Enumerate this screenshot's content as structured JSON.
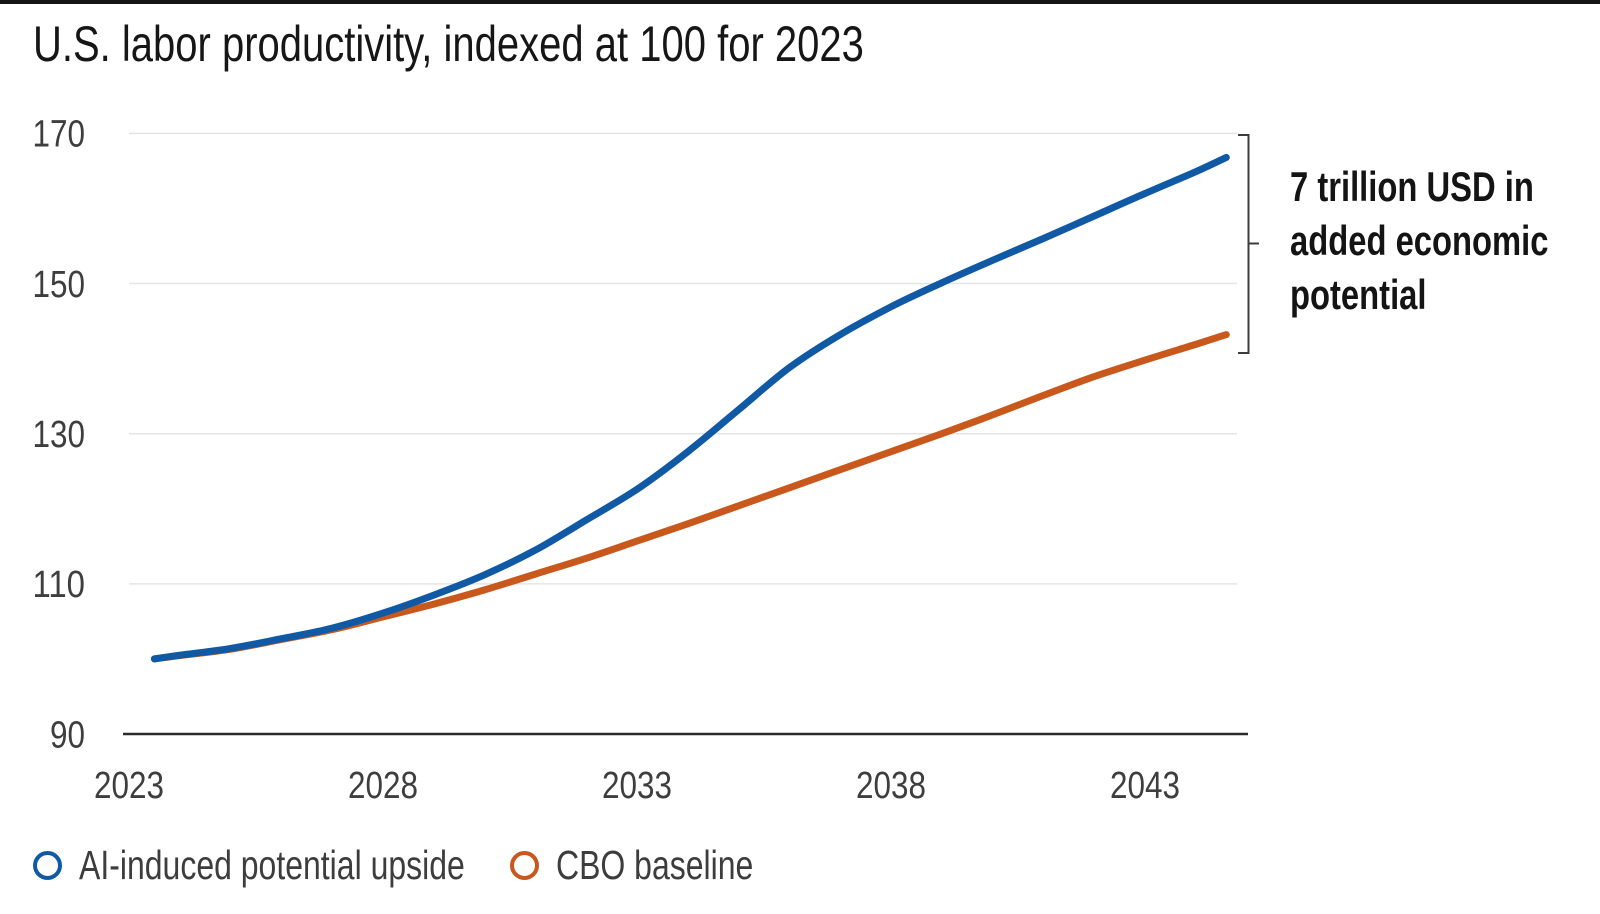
{
  "chart_data": {
    "type": "line",
    "title": "U.S. labor productivity, indexed at 100 for 2023",
    "xlabel": "",
    "ylabel": "",
    "x_range": [
      2023,
      2045
    ],
    "y_range": [
      90,
      170
    ],
    "x_ticks": [
      "2023",
      "2028",
      "2033",
      "2038",
      "2043"
    ],
    "x_tick_years": [
      2023,
      2028,
      2033,
      2038,
      2043
    ],
    "y_ticks": [
      "90",
      "110",
      "130",
      "150",
      "170"
    ],
    "y_tick_values": [
      90,
      110,
      130,
      150,
      170
    ],
    "grid": "horizontal",
    "legend_position": "bottom-left",
    "series": [
      {
        "name": "AI-induced potential upside",
        "color": "#0f59a5",
        "points": [
          [
            2023.5,
            100
          ],
          [
            2024,
            100.5
          ],
          [
            2025,
            101.4
          ],
          [
            2026,
            102.7
          ],
          [
            2027,
            104.1
          ],
          [
            2028,
            106.1
          ],
          [
            2029,
            108.5
          ],
          [
            2030,
            111.2
          ],
          [
            2031,
            114.5
          ],
          [
            2032,
            118.5
          ],
          [
            2033,
            122.6
          ],
          [
            2034,
            127.6
          ],
          [
            2035,
            133.2
          ],
          [
            2036,
            138.8
          ],
          [
            2037,
            143.2
          ],
          [
            2038,
            146.9
          ],
          [
            2039,
            150.1
          ],
          [
            2040,
            153.1
          ],
          [
            2041,
            156.0
          ],
          [
            2042,
            159.0
          ],
          [
            2043,
            162.0
          ],
          [
            2044,
            164.9
          ],
          [
            2044.6,
            166.8
          ]
        ]
      },
      {
        "name": "CBO baseline",
        "color": "#c9581c",
        "points": [
          [
            2023.5,
            100
          ],
          [
            2024,
            100.45
          ],
          [
            2025,
            101.3
          ],
          [
            2026,
            102.6
          ],
          [
            2027,
            103.9
          ],
          [
            2028,
            105.6
          ],
          [
            2029,
            107.3
          ],
          [
            2030,
            109.2
          ],
          [
            2031,
            111.3
          ],
          [
            2032,
            113.4
          ],
          [
            2033,
            115.7
          ],
          [
            2034,
            118.0
          ],
          [
            2035,
            120.4
          ],
          [
            2036,
            122.8
          ],
          [
            2037,
            125.2
          ],
          [
            2038,
            127.6
          ],
          [
            2039,
            130.0
          ],
          [
            2040,
            132.5
          ],
          [
            2041,
            135.1
          ],
          [
            2042,
            137.6
          ],
          [
            2043,
            139.8
          ],
          [
            2044,
            141.9
          ],
          [
            2044.6,
            143.2
          ]
        ]
      }
    ],
    "annotation": {
      "lines": [
        "7 trillion USD in",
        "added economic",
        "potential"
      ]
    }
  }
}
